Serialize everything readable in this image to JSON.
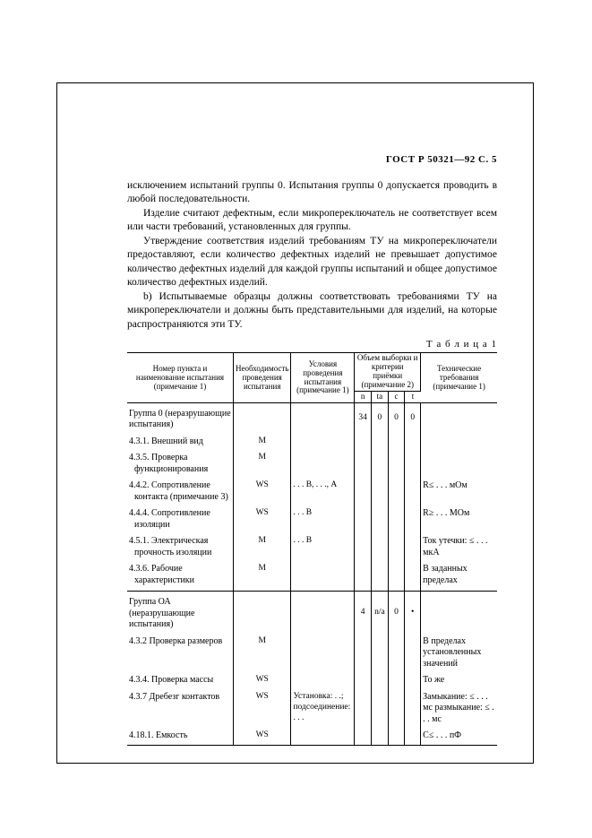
{
  "header": "ГОСТ Р 50321—92 С. 5",
  "paragraphs": [
    "исключением испытаний группы 0. Испытания группы 0 допускается проводить в любой последовательности.",
    "Изделие считают дефектным, если микропереключатель не соответствует всем или части требований, установленных для группы.",
    "Утверждение соответствия изделий требованиям ТУ на микропереключатели предоставляют, если количество дефектных изделий не превышает допустимое количество дефектных изделий для каждой группы испытаний и общее допустимое количество дефектных изделий.",
    "b) Испытываемые образцы должны соответствовать требованиями ТУ на микропереключатели и должны быть представительными для изделий, на которые распространяются эти ТУ."
  ],
  "table_label": "Т а б л и ц а 1",
  "columns": {
    "c1": "Номер пункта и наименование испытания (примечание 1)",
    "c2": "Необходимость проведения испытания",
    "c3": "Условия проведения испытания (примечание 1)",
    "c4_top": "Объем выборки и критерии приёмки (примечание 2)",
    "c4_n": "n",
    "c4_ta": "ta",
    "c4_c": "c",
    "c4_t": "t",
    "c5": "Технические требования (примечание 1)"
  },
  "group0": {
    "title": "Группа 0 (неразрушающие испытания)",
    "n": "34",
    "ta": "0",
    "c": "0",
    "t": "0",
    "rows": [
      {
        "name": "4.3.1. Внешний вид",
        "need": "M",
        "cond": "",
        "req": ""
      },
      {
        "name": "4.3.5. Проверка функционирования",
        "need": "M",
        "cond": "",
        "req": ""
      },
      {
        "name": "4.4.2. Сопротивление контакта (примечание 3)",
        "need": "WS",
        "cond": ". . . В, . . ., А",
        "req": "R≤ . . . мОм"
      },
      {
        "name": "4.4.4. Сопротивление изоляции",
        "need": "WS",
        "cond": ". . . В",
        "req": "R≥ . . . МОм"
      },
      {
        "name": "4.5.1. Электрическая прочность изоляции",
        "need": "M",
        "cond": ". . . В",
        "req": "Ток утечки: ≤ . . . мкА"
      },
      {
        "name": "4.3.6. Рабочие характеристики",
        "need": "M",
        "cond": "",
        "req": "В заданных пределах"
      }
    ]
  },
  "groupOA": {
    "title": "Группа ОА (неразрушающие испытания)",
    "n": "4",
    "ta": "n/a",
    "c": "0",
    "t": "•",
    "rows": [
      {
        "name": "4.3.2 Проверка размеров",
        "need": "M",
        "cond": "",
        "req": "В пределах установленных значений"
      },
      {
        "name": "4.3.4. Проверка массы",
        "need": "WS",
        "cond": "",
        "req": "То же"
      },
      {
        "name": "4.3.7 Дребезг контактов",
        "need": "WS",
        "cond": "Установка: . .; подсоединение: . . .",
        "req": "Замыкание: ≤ . . . мс размыкание: ≤ . . . мс"
      },
      {
        "name": "4.18.1. Емкость",
        "need": "WS",
        "cond": "",
        "req": "С≤ . . . пФ"
      }
    ]
  }
}
